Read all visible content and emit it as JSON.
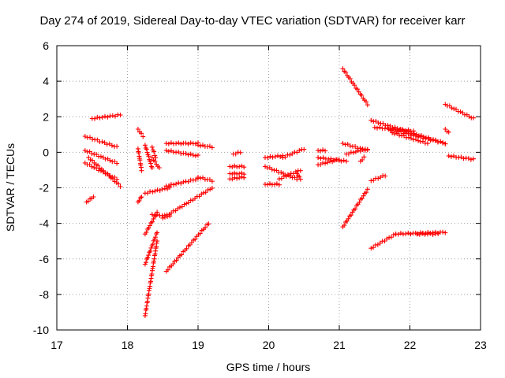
{
  "chart_data": {
    "type": "scatter",
    "title": "Day 274 of 2019, Sidereal Day-to-day VTEC variation (SDTVAR) for receiver karr",
    "xlabel": "GPS time / hours",
    "ylabel": "SDTVAR / TECUs",
    "xlim": [
      17,
      23
    ],
    "ylim": [
      -10,
      6
    ],
    "xticks": [
      17,
      18,
      19,
      20,
      21,
      22,
      23
    ],
    "yticks": [
      -10,
      -8,
      -6,
      -4,
      -2,
      0,
      2,
      4,
      6
    ],
    "grid": true,
    "marker": "+",
    "color": "#ff0000",
    "tracks": [
      {
        "from": [
          17.5,
          1.9
        ],
        "to": [
          17.9,
          2.1
        ]
      },
      {
        "from": [
          17.4,
          0.9
        ],
        "to": [
          17.85,
          0.3
        ]
      },
      {
        "from": [
          17.4,
          0.1
        ],
        "to": [
          17.85,
          -0.6
        ]
      },
      {
        "from": [
          17.45,
          -0.3
        ],
        "to": [
          17.9,
          -1.9
        ]
      },
      {
        "from": [
          17.4,
          -0.6
        ],
        "to": [
          17.85,
          -1.5
        ]
      },
      {
        "from": [
          17.42,
          -2.8
        ],
        "to": [
          17.52,
          -2.5
        ]
      },
      {
        "from": [
          18.15,
          1.3
        ],
        "to": [
          18.22,
          0.9
        ]
      },
      {
        "from": [
          18.15,
          0.2
        ],
        "to": [
          18.2,
          -1.0
        ]
      },
      {
        "from": [
          18.25,
          0.4
        ],
        "to": [
          18.35,
          -0.9
        ]
      },
      {
        "from": [
          18.4,
          -0.3
        ],
        "to": [
          18.35,
          0.3
        ]
      },
      {
        "from": [
          18.35,
          -0.3
        ],
        "to": [
          18.45,
          -0.9
        ]
      },
      {
        "from": [
          18.15,
          -2.8
        ],
        "to": [
          18.2,
          -2.5
        ]
      },
      {
        "from": [
          18.25,
          -2.3
        ],
        "to": [
          18.6,
          -2.0
        ]
      },
      {
        "from": [
          18.55,
          0.5
        ],
        "to": [
          19.0,
          0.5
        ]
      },
      {
        "from": [
          18.55,
          0.1
        ],
        "to": [
          19.0,
          -0.2
        ]
      },
      {
        "from": [
          19.0,
          0.4
        ],
        "to": [
          19.2,
          0.3
        ]
      },
      {
        "from": [
          18.55,
          -1.9
        ],
        "to": [
          19.0,
          -1.5
        ]
      },
      {
        "from": [
          19.0,
          -1.4
        ],
        "to": [
          19.2,
          -1.6
        ]
      },
      {
        "from": [
          18.5,
          -3.7
        ],
        "to": [
          19.2,
          -2.0
        ]
      },
      {
        "from": [
          18.25,
          -9.2
        ],
        "to": [
          18.42,
          -5.0
        ]
      },
      {
        "from": [
          18.25,
          -6.3
        ],
        "to": [
          18.42,
          -4.5
        ]
      },
      {
        "from": [
          18.25,
          -4.6
        ],
        "to": [
          18.42,
          -3.4
        ]
      },
      {
        "from": [
          18.35,
          -3.5
        ],
        "to": [
          18.6,
          -3.6
        ]
      },
      {
        "from": [
          18.55,
          -6.7
        ],
        "to": [
          19.15,
          -4.0
        ]
      },
      {
        "from": [
          19.5,
          -0.1
        ],
        "to": [
          19.6,
          0.0
        ]
      },
      {
        "from": [
          19.45,
          -0.8
        ],
        "to": [
          19.65,
          -0.8
        ]
      },
      {
        "from": [
          19.45,
          -1.2
        ],
        "to": [
          19.65,
          -1.2
        ]
      },
      {
        "from": [
          19.45,
          -1.5
        ],
        "to": [
          19.65,
          -1.4
        ]
      },
      {
        "from": [
          19.95,
          -0.3
        ],
        "to": [
          20.2,
          -0.2
        ]
      },
      {
        "from": [
          20.2,
          -0.3
        ],
        "to": [
          20.5,
          0.2
        ]
      },
      {
        "from": [
          19.95,
          -0.8
        ],
        "to": [
          20.4,
          -1.5
        ]
      },
      {
        "from": [
          19.95,
          -1.8
        ],
        "to": [
          20.15,
          -1.8
        ]
      },
      {
        "from": [
          20.15,
          -1.5
        ],
        "to": [
          20.45,
          -1.0
        ]
      },
      {
        "from": [
          20.4,
          -1.2
        ],
        "to": [
          20.45,
          -1.5
        ]
      },
      {
        "from": [
          20.7,
          0.1
        ],
        "to": [
          20.8,
          0.1
        ]
      },
      {
        "from": [
          20.7,
          -0.3
        ],
        "to": [
          21.1,
          -0.5
        ]
      },
      {
        "from": [
          20.7,
          -0.7
        ],
        "to": [
          21.0,
          -0.4
        ]
      },
      {
        "from": [
          21.05,
          4.7
        ],
        "to": [
          21.4,
          2.7
        ]
      },
      {
        "from": [
          21.05,
          0.5
        ],
        "to": [
          21.4,
          0.1
        ]
      },
      {
        "from": [
          21.1,
          -0.1
        ],
        "to": [
          21.4,
          0.2
        ]
      },
      {
        "from": [
          21.3,
          -0.5
        ],
        "to": [
          21.35,
          -0.3
        ]
      },
      {
        "from": [
          21.05,
          -4.2
        ],
        "to": [
          21.4,
          -2.1
        ]
      },
      {
        "from": [
          21.45,
          1.8
        ],
        "to": [
          22.5,
          0.5
        ]
      },
      {
        "from": [
          21.5,
          1.4
        ],
        "to": [
          22.05,
          1.2
        ]
      },
      {
        "from": [
          21.7,
          1.3
        ],
        "to": [
          22.5,
          0.5
        ]
      },
      {
        "from": [
          21.75,
          1.1
        ],
        "to": [
          22.25,
          0.5
        ]
      },
      {
        "from": [
          21.45,
          -1.6
        ],
        "to": [
          21.65,
          -1.3
        ]
      },
      {
        "from": [
          21.45,
          -5.4
        ],
        "to": [
          21.8,
          -4.6
        ]
      },
      {
        "from": [
          21.8,
          -4.6
        ],
        "to": [
          22.5,
          -4.5
        ]
      },
      {
        "from": [
          22.1,
          -4.6
        ],
        "to": [
          22.4,
          -4.6
        ]
      },
      {
        "from": [
          22.5,
          2.7
        ],
        "to": [
          22.9,
          1.9
        ]
      },
      {
        "from": [
          22.5,
          1.3
        ],
        "to": [
          22.55,
          1.1
        ]
      },
      {
        "from": [
          22.55,
          -0.2
        ],
        "to": [
          22.9,
          -0.4
        ]
      }
    ]
  }
}
